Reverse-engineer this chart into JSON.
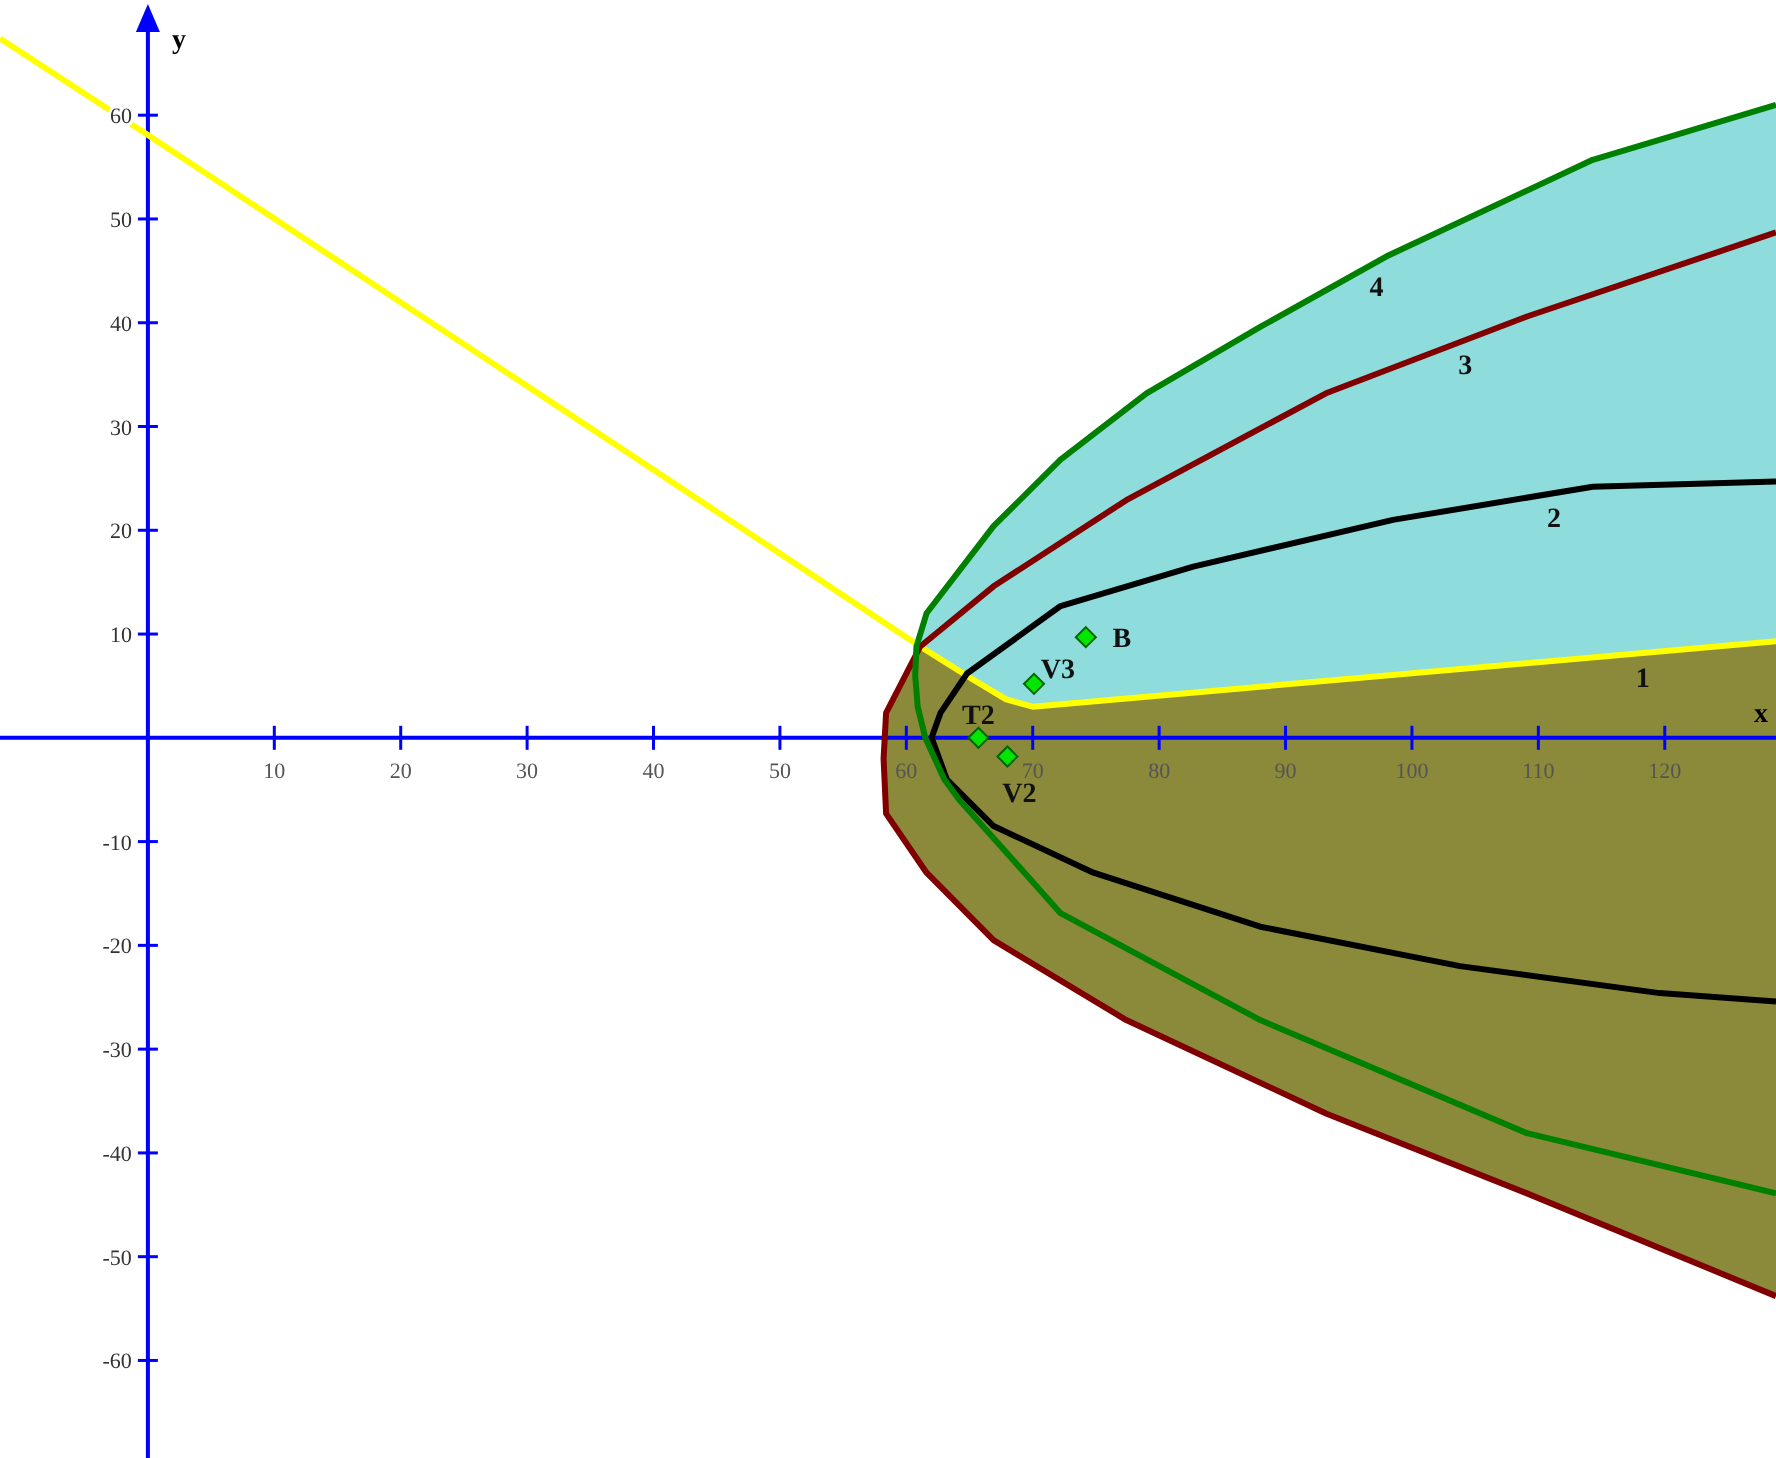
{
  "chart_data": {
    "type": "line",
    "xlabel": "x",
    "ylabel": "y",
    "xlim": [
      -11.7,
      128.8
    ],
    "ylim": [
      -69.4,
      71.1
    ],
    "xticks": [
      10,
      20,
      30,
      40,
      50,
      60,
      70,
      80,
      90,
      100,
      110,
      120
    ],
    "yticks": [
      -60,
      -50,
      -40,
      -30,
      -20,
      -10,
      10,
      20,
      30,
      40,
      50,
      60
    ],
    "series": [
      {
        "name": "1",
        "color": "#ffff00",
        "x": [
          -11.7,
          0,
          61.1,
          65.3,
          67.9,
          70,
          128.8
        ],
        "values": [
          67.4,
          58.1,
          8.8,
          5.6,
          3.7,
          3,
          9.3
        ]
      },
      {
        "name": "2",
        "color": "#000000",
        "x": [
          128.8,
          114.3,
          98.5,
          82.7,
          72.2,
          64.8,
          62.7,
          62,
          63.2,
          66.9,
          74.8,
          88,
          103.8,
          119.6,
          128.8
        ],
        "values": [
          24.7,
          24.2,
          21,
          16.5,
          12.7,
          6.2,
          2.4,
          0,
          -4,
          -8.5,
          -13,
          -18.2,
          -22,
          -24.6,
          -25.4
        ]
      },
      {
        "name": "3",
        "color": "#800000",
        "x": [
          128.8,
          109.1,
          93.2,
          77.4,
          66.9,
          61.1,
          58.4,
          58.2,
          58.4,
          61.6,
          66.9,
          77.4,
          93.2,
          109.1,
          128.8
        ],
        "values": [
          48.7,
          40.6,
          33.2,
          22.9,
          14.6,
          8.8,
          2.4,
          -2,
          -7.3,
          -13,
          -19.5,
          -27.2,
          -36.2,
          -43.9,
          -53.8
        ]
      },
      {
        "name": "4",
        "color": "#008000",
        "x": [
          128.8,
          114.3,
          98,
          88,
          79,
          72.2,
          66.9,
          61.6,
          60.8,
          60.7,
          60.9,
          61.5,
          63,
          64.2,
          72.2,
          88,
          109.1,
          128.8
        ],
        "values": [
          61,
          55.7,
          46.4,
          39.6,
          33.2,
          26.8,
          20.4,
          12,
          8.8,
          6,
          3,
          0,
          -4,
          -6,
          -16.9,
          -27.2,
          -38.1,
          -43.9
        ]
      },
      {
        "type": "scatter",
        "color": "#00e600",
        "marker": "diamond",
        "x": [
          74.2,
          70.1,
          65.7,
          68
        ],
        "values": [
          9.7,
          5.2,
          0,
          -1.8
        ]
      }
    ],
    "annotations": [
      {
        "text": "B",
        "x": 74.2,
        "y": 9.7
      },
      {
        "text": "V3",
        "x": 70.1,
        "y": 5.2
      },
      {
        "text": "T2",
        "x": 65.7,
        "y": 0
      },
      {
        "text": "V2",
        "x": 68,
        "y": -1.8
      }
    ]
  }
}
